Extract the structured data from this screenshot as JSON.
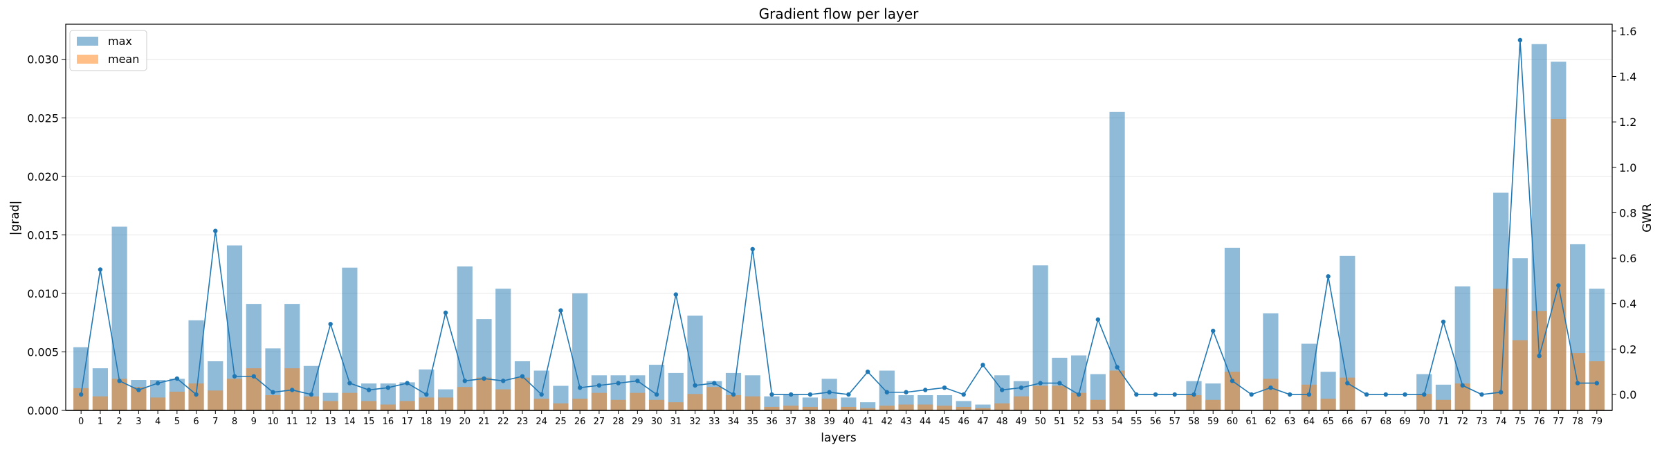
{
  "chart_data": {
    "type": "bar",
    "title": "Gradient flow per layer",
    "xlabel": "layers",
    "ylabel": "|grad|",
    "y2label": "GWR",
    "ylim": [
      0,
      0.033
    ],
    "y2lim": [
      -0.07,
      1.63
    ],
    "yticks": [
      "0.000",
      "0.005",
      "0.010",
      "0.015",
      "0.020",
      "0.025",
      "0.030"
    ],
    "y2ticks": [
      "0.0",
      "0.2",
      "0.4",
      "0.6",
      "0.8",
      "1.0",
      "1.2",
      "1.4",
      "1.6"
    ],
    "grid": true,
    "legend_position": "upper-left",
    "categories": [
      "0",
      "1",
      "2",
      "3",
      "4",
      "5",
      "6",
      "7",
      "8",
      "9",
      "10",
      "11",
      "12",
      "13",
      "14",
      "15",
      "16",
      "17",
      "18",
      "19",
      "20",
      "21",
      "22",
      "23",
      "24",
      "25",
      "26",
      "27",
      "28",
      "29",
      "30",
      "31",
      "32",
      "33",
      "34",
      "35",
      "36",
      "37",
      "38",
      "39",
      "40",
      "41",
      "42",
      "43",
      "44",
      "45",
      "46",
      "47",
      "48",
      "49",
      "50",
      "51",
      "52",
      "53",
      "54",
      "55",
      "56",
      "57",
      "58",
      "59",
      "60",
      "61",
      "62",
      "63",
      "64",
      "65",
      "66",
      "67",
      "68",
      "69",
      "70",
      "71",
      "72",
      "73",
      "74",
      "75",
      "76",
      "77",
      "78",
      "79"
    ],
    "series": [
      {
        "name": "max",
        "kind": "bar",
        "axis": "left",
        "color": "#1f77b4",
        "opacity": 0.5,
        "values": [
          0.0054,
          0.0036,
          0.0157,
          0.0026,
          0.0026,
          0.0027,
          0.0077,
          0.0042,
          0.0141,
          0.0091,
          0.0053,
          0.0091,
          0.0038,
          0.0015,
          0.0122,
          0.0023,
          0.0023,
          0.0024,
          0.0035,
          0.0018,
          0.0123,
          0.0078,
          0.0104,
          0.0042,
          0.0034,
          0.0021,
          0.01,
          0.003,
          0.003,
          0.003,
          0.0039,
          0.0032,
          0.0081,
          0.0025,
          0.0032,
          0.003,
          0.0012,
          0.0014,
          0.0011,
          0.0027,
          0.0011,
          0.0007,
          0.0034,
          0.0013,
          0.0013,
          0.0013,
          0.0008,
          0.0005,
          0.003,
          0.0025,
          0.0124,
          0.0045,
          0.0047,
          0.0031,
          0.0255,
          0,
          0,
          0,
          0.0025,
          0.0023,
          0.0139,
          0,
          0.0083,
          0,
          0.0057,
          0.0033,
          0.0132,
          0,
          0,
          0,
          0.0031,
          0.0022,
          0.0106,
          0,
          0.0186,
          0.013,
          0.0313,
          0.0298,
          0.0142,
          0.0104
        ]
      },
      {
        "name": "mean",
        "kind": "bar",
        "axis": "left",
        "color": "#ff7f0e",
        "opacity": 0.5,
        "values": [
          0.0019,
          0.0012,
          0.0027,
          0.002,
          0.0011,
          0.0016,
          0.0023,
          0.0017,
          0.0027,
          0.0036,
          0.0013,
          0.0036,
          0.0012,
          0.0008,
          0.0015,
          0.0008,
          0.0005,
          0.0008,
          0.0011,
          0.0011,
          0.002,
          0.0028,
          0.0018,
          0.0028,
          0.001,
          0.0006,
          0.001,
          0.0015,
          0.0009,
          0.0015,
          0.0009,
          0.0007,
          0.0014,
          0.002,
          0.0013,
          0.0012,
          0.0003,
          0.0004,
          0.0003,
          0.001,
          0.0003,
          0.0002,
          0.0004,
          0.0005,
          0.0005,
          0.0004,
          0.0003,
          0.0002,
          0.0006,
          0.0012,
          0.0021,
          0.0021,
          0.0015,
          0.0009,
          0.0034,
          0,
          0,
          0,
          0.0013,
          0.0009,
          0.0033,
          0,
          0.0027,
          0,
          0.0022,
          0.001,
          0.0028,
          0,
          0,
          0,
          0.0014,
          0.0009,
          0.0023,
          0,
          0.0104,
          0.006,
          0.0085,
          0.0249,
          0.0049,
          0.0042
        ]
      },
      {
        "kind": "line",
        "axis": "right",
        "color": "#1f77b4",
        "values": [
          0.0,
          0.55,
          0.06,
          0.02,
          0.05,
          0.07,
          0.0,
          0.72,
          0.08,
          0.08,
          0.01,
          0.02,
          0.0,
          0.31,
          0.05,
          0.02,
          0.03,
          0.05,
          0.0,
          0.36,
          0.06,
          0.07,
          0.06,
          0.08,
          0.0,
          0.37,
          0.03,
          0.04,
          0.05,
          0.06,
          0.0,
          0.44,
          0.04,
          0.05,
          0.0,
          0.64,
          0.0,
          0.0,
          0.0,
          0.01,
          0.0,
          0.1,
          0.01,
          0.01,
          0.02,
          0.03,
          0.0,
          0.13,
          0.02,
          0.03,
          0.05,
          0.05,
          0.0,
          0.33,
          0.12,
          0.0,
          0.0,
          0.0,
          0.0,
          0.28,
          0.06,
          0.0,
          0.03,
          0.0,
          0.0,
          0.52,
          0.05,
          0.0,
          0.0,
          0.0,
          0.0,
          0.32,
          0.04,
          0.0,
          0.01,
          1.56,
          0.17,
          0.48,
          0.05,
          0.05
        ]
      }
    ]
  }
}
